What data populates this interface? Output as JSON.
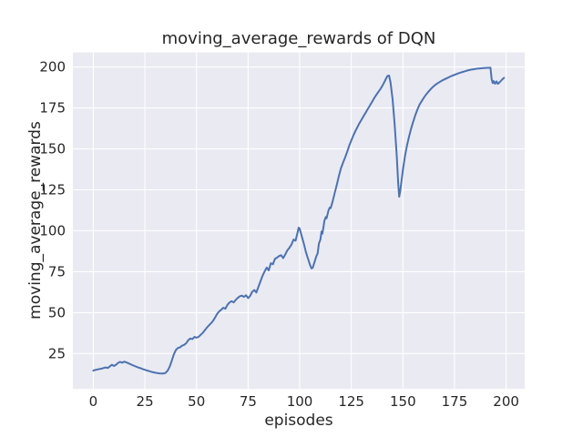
{
  "figure": {
    "background_color": "#ffffff"
  },
  "chart_data": {
    "type": "line",
    "title": "moving_average_rewards of DQN",
    "xlabel": "episodes",
    "ylabel": "moving_average_rewards",
    "xlim": [
      -9.9,
      209.0
    ],
    "ylim": [
      3.4,
      208.9
    ],
    "xticks": [
      0,
      25,
      50,
      75,
      100,
      125,
      150,
      175,
      200
    ],
    "yticks": [
      25,
      50,
      75,
      100,
      125,
      150,
      175,
      200
    ],
    "grid": true,
    "legend_position": "none",
    "styles": {
      "axes_background": "#eaeaf2",
      "grid_color": "#ffffff",
      "line_color": "#4c72b0",
      "text_color": "#262626",
      "line_width": 2
    },
    "series": [
      {
        "name": "moving_average_rewards",
        "points": [
          [
            0,
            14.6
          ],
          [
            1,
            15.0
          ],
          [
            2,
            15.3
          ],
          [
            3,
            15.6
          ],
          [
            4,
            15.8
          ],
          [
            5,
            16.2
          ],
          [
            6,
            16.5
          ],
          [
            7,
            16.2
          ],
          [
            8,
            17.2
          ],
          [
            9,
            18.2
          ],
          [
            10,
            17.4
          ],
          [
            11,
            18.2
          ],
          [
            12,
            19.3
          ],
          [
            13,
            19.9
          ],
          [
            14,
            19.4
          ],
          [
            15,
            20.1
          ],
          [
            16,
            19.6
          ],
          [
            17,
            19.0
          ],
          [
            18,
            18.5
          ],
          [
            19,
            17.9
          ],
          [
            20,
            17.4
          ],
          [
            21,
            16.9
          ],
          [
            22,
            16.4
          ],
          [
            23,
            16.0
          ],
          [
            24,
            15.5
          ],
          [
            25,
            15.1
          ],
          [
            26,
            14.7
          ],
          [
            27,
            14.3
          ],
          [
            28,
            13.9
          ],
          [
            29,
            13.6
          ],
          [
            30,
            13.3
          ],
          [
            31,
            13.1
          ],
          [
            32,
            12.9
          ],
          [
            33,
            12.8
          ],
          [
            34,
            12.8
          ],
          [
            35,
            13.2
          ],
          [
            36,
            14.5
          ],
          [
            37,
            17.0
          ],
          [
            38,
            20.5
          ],
          [
            39,
            24.5
          ],
          [
            40,
            27.2
          ],
          [
            41,
            28.4
          ],
          [
            42,
            28.8
          ],
          [
            43,
            29.8
          ],
          [
            44,
            30.3
          ],
          [
            45,
            31.3
          ],
          [
            46,
            33.2
          ],
          [
            47,
            34.2
          ],
          [
            48,
            33.8
          ],
          [
            49,
            35.2
          ],
          [
            50,
            34.7
          ],
          [
            51,
            35.2
          ],
          [
            52,
            36.4
          ],
          [
            53,
            37.6
          ],
          [
            54,
            39.2
          ],
          [
            55,
            40.8
          ],
          [
            56,
            42.2
          ],
          [
            57,
            43.5
          ],
          [
            58,
            45.0
          ],
          [
            59,
            47.0
          ],
          [
            60,
            49.2
          ],
          [
            61,
            50.8
          ],
          [
            62,
            51.8
          ],
          [
            63,
            53.0
          ],
          [
            64,
            52.4
          ],
          [
            65,
            54.8
          ],
          [
            66,
            56.2
          ],
          [
            67,
            57.0
          ],
          [
            68,
            56.2
          ],
          [
            69,
            57.8
          ],
          [
            70,
            59.0
          ],
          [
            71,
            60.0
          ],
          [
            72,
            60.4
          ],
          [
            73,
            59.6
          ],
          [
            74,
            60.6
          ],
          [
            75,
            58.9
          ],
          [
            76,
            60.2
          ],
          [
            77,
            62.8
          ],
          [
            78,
            63.8
          ],
          [
            79,
            62.3
          ],
          [
            80,
            65.8
          ],
          [
            81,
            69.2
          ],
          [
            82,
            72.5
          ],
          [
            83,
            75.2
          ],
          [
            84,
            77.5
          ],
          [
            85,
            75.8
          ],
          [
            86,
            80.2
          ],
          [
            87,
            79.5
          ],
          [
            88,
            82.8
          ],
          [
            89,
            83.6
          ],
          [
            90,
            84.6
          ],
          [
            91,
            85.1
          ],
          [
            92,
            83.3
          ],
          [
            93,
            85.6
          ],
          [
            94,
            88.0
          ],
          [
            95,
            89.6
          ],
          [
            96,
            91.6
          ],
          [
            97,
            94.6
          ],
          [
            98,
            94.0
          ],
          [
            99,
            99.2
          ],
          [
            99.5,
            101.9
          ],
          [
            100,
            101.2
          ],
          [
            101,
            96.6
          ],
          [
            102,
            92.0
          ],
          [
            103,
            87.0
          ],
          [
            104,
            83.0
          ],
          [
            105,
            79.2
          ],
          [
            105.7,
            77.0
          ],
          [
            106.3,
            77.4
          ],
          [
            107,
            80.2
          ],
          [
            108,
            84.2
          ],
          [
            108.7,
            86.2
          ],
          [
            109.3,
            92.2
          ],
          [
            110,
            94.6
          ],
          [
            110.6,
            99.6
          ],
          [
            111,
            98.2
          ],
          [
            112,
            106.2
          ],
          [
            112.6,
            108.4
          ],
          [
            113,
            107.6
          ],
          [
            114,
            112.6
          ],
          [
            114.6,
            114.2
          ],
          [
            115,
            113.8
          ],
          [
            116,
            118.2
          ],
          [
            117,
            123.2
          ],
          [
            118,
            128.2
          ],
          [
            119,
            133.6
          ],
          [
            120,
            138.2
          ],
          [
            121,
            141.6
          ],
          [
            122,
            144.8
          ],
          [
            123,
            148.2
          ],
          [
            124,
            152.0
          ],
          [
            125,
            155.2
          ],
          [
            126,
            158.2
          ],
          [
            127,
            161.0
          ],
          [
            128,
            163.4
          ],
          [
            129,
            165.8
          ],
          [
            130,
            168.0
          ],
          [
            131,
            170.2
          ],
          [
            132,
            172.2
          ],
          [
            133,
            174.4
          ],
          [
            134,
            176.5
          ],
          [
            135,
            178.6
          ],
          [
            136,
            180.8
          ],
          [
            137,
            182.8
          ],
          [
            138,
            184.6
          ],
          [
            139,
            186.4
          ],
          [
            140,
            188.5
          ],
          [
            141,
            190.8
          ],
          [
            142,
            193.4
          ],
          [
            142.6,
            194.6
          ],
          [
            143.3,
            194.8
          ],
          [
            144,
            190.6
          ],
          [
            145,
            180.2
          ],
          [
            146,
            165.2
          ],
          [
            147,
            146.2
          ],
          [
            147.7,
            129.2
          ],
          [
            148.2,
            120.8
          ],
          [
            148.7,
            124.2
          ],
          [
            149.3,
            130.2
          ],
          [
            150,
            137.2
          ],
          [
            151,
            145.6
          ],
          [
            152,
            152.2
          ],
          [
            153,
            157.6
          ],
          [
            154,
            162.6
          ],
          [
            155,
            166.6
          ],
          [
            156,
            170.6
          ],
          [
            157,
            174.0
          ],
          [
            158,
            176.8
          ],
          [
            159,
            179.0
          ],
          [
            160,
            181.0
          ],
          [
            161,
            182.8
          ],
          [
            162,
            184.4
          ],
          [
            163,
            185.8
          ],
          [
            164,
            187.2
          ],
          [
            165,
            188.4
          ],
          [
            166,
            189.4
          ],
          [
            167,
            190.2
          ],
          [
            168,
            191.0
          ],
          [
            169,
            191.8
          ],
          [
            170,
            192.4
          ],
          [
            171,
            193.0
          ],
          [
            172,
            193.6
          ],
          [
            173,
            194.2
          ],
          [
            174,
            194.7
          ],
          [
            175,
            195.2
          ],
          [
            176,
            195.7
          ],
          [
            177,
            196.2
          ],
          [
            178,
            196.6
          ],
          [
            179,
            197.0
          ],
          [
            180,
            197.4
          ],
          [
            181,
            197.8
          ],
          [
            182,
            198.1
          ],
          [
            183,
            198.4
          ],
          [
            184,
            198.6
          ],
          [
            185,
            198.8
          ],
          [
            186,
            199.0
          ],
          [
            187,
            199.1
          ],
          [
            188,
            199.25
          ],
          [
            189,
            199.35
          ],
          [
            190,
            199.45
          ],
          [
            191,
            199.5
          ],
          [
            192,
            199.55
          ],
          [
            192.4,
            199.6
          ],
          [
            193,
            192.6
          ],
          [
            193.5,
            190.2
          ],
          [
            194,
            191.4
          ],
          [
            194.6,
            189.8
          ],
          [
            195.3,
            191.2
          ],
          [
            196,
            189.7
          ],
          [
            197,
            190.9
          ],
          [
            198,
            192.3
          ],
          [
            199,
            193.4
          ]
        ]
      }
    ]
  }
}
